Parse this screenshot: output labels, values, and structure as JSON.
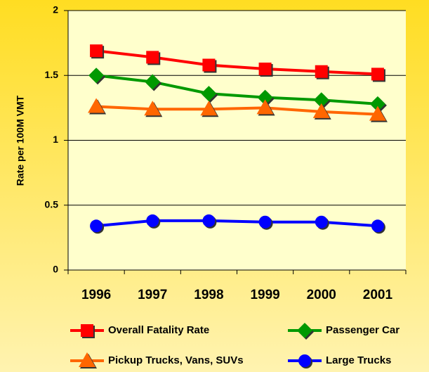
{
  "chart_data": {
    "type": "line",
    "categories": [
      "1996",
      "1997",
      "1998",
      "1999",
      "2000",
      "2001"
    ],
    "y_label": "Rate per 100M VMT",
    "ylim": [
      0,
      2
    ],
    "yticks": [
      0,
      0.5,
      1,
      1.5,
      2
    ],
    "grid": true,
    "series": [
      {
        "name": "Overall Fatality Rate",
        "color": "#ff0000",
        "marker": "square",
        "values": [
          1.69,
          1.64,
          1.58,
          1.55,
          1.53,
          1.51
        ]
      },
      {
        "name": "Passenger Car",
        "color": "#009900",
        "marker": "diamond",
        "values": [
          1.5,
          1.45,
          1.36,
          1.33,
          1.31,
          1.28
        ]
      },
      {
        "name": "Pickup Trucks, Vans, SUVs",
        "color": "#ff6600",
        "marker": "triangle",
        "values": [
          1.26,
          1.24,
          1.24,
          1.25,
          1.22,
          1.2
        ]
      },
      {
        "name": "Large Trucks",
        "color": "#0000ff",
        "marker": "circle",
        "values": [
          0.34,
          0.38,
          0.38,
          0.37,
          0.37,
          0.34
        ]
      }
    ]
  }
}
